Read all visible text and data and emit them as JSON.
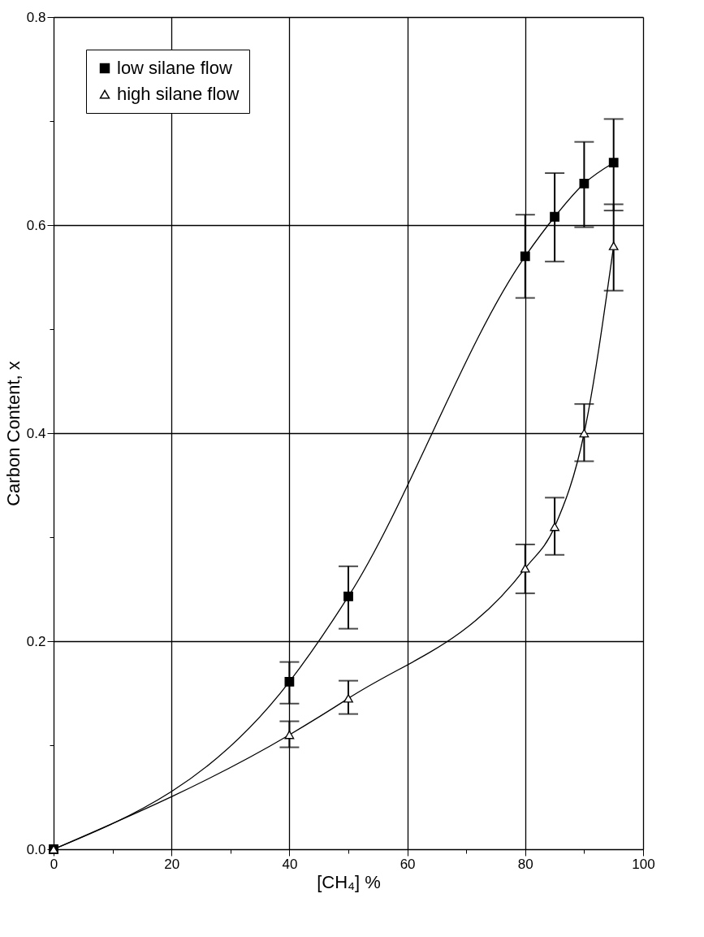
{
  "chart_data": {
    "type": "line",
    "xlabel": "[CH₄] %",
    "ylabel": "Carbon Content, x",
    "series": [
      {
        "name": "low silane flow",
        "color": "#000000",
        "marker": "square",
        "x": [
          0,
          40,
          50,
          80,
          85,
          90,
          95
        ],
        "values": [
          0.0,
          0.161,
          0.243,
          0.57,
          0.608,
          0.64,
          0.66
        ],
        "errors": [
          null,
          [
            0.14,
            0.18
          ],
          [
            0.212,
            0.272
          ],
          [
            0.53,
            0.61
          ],
          [
            0.565,
            0.65
          ],
          [
            0.598,
            0.68
          ],
          [
            0.614,
            0.702
          ]
        ]
      },
      {
        "name": "high silane flow",
        "color": "#000000",
        "marker": "triangle",
        "x": [
          0,
          40,
          50,
          80,
          85,
          90,
          95
        ],
        "values": [
          0.0,
          0.11,
          0.145,
          0.27,
          0.31,
          0.4,
          0.58
        ],
        "errors": [
          null,
          [
            0.098,
            0.123
          ],
          [
            0.13,
            0.162
          ],
          [
            0.246,
            0.293
          ],
          [
            0.283,
            0.338
          ],
          [
            0.373,
            0.428
          ],
          [
            0.537,
            0.62
          ]
        ]
      }
    ],
    "xlim": [
      0,
      100
    ],
    "ylim": [
      0,
      0.8
    ],
    "xticks": [
      0,
      {
        "value": 10,
        "label": null
      },
      20,
      {
        "value": 30,
        "label": null
      },
      40,
      {
        "value": 50,
        "label": null
      },
      60,
      {
        "value": 70,
        "label": null
      },
      80,
      {
        "value": 90,
        "label": null
      },
      100
    ],
    "yticks": [
      {
        "value": 0.0,
        "label": "0.0"
      },
      {
        "value": 0.1,
        "label": null
      },
      0.2,
      {
        "value": 0.3,
        "label": null
      },
      0.4,
      {
        "value": 0.5,
        "label": null
      },
      0.6,
      {
        "value": 0.7,
        "label": null
      },
      0.8
    ],
    "grid": true,
    "legend": "top left",
    "line_style": "solid"
  }
}
